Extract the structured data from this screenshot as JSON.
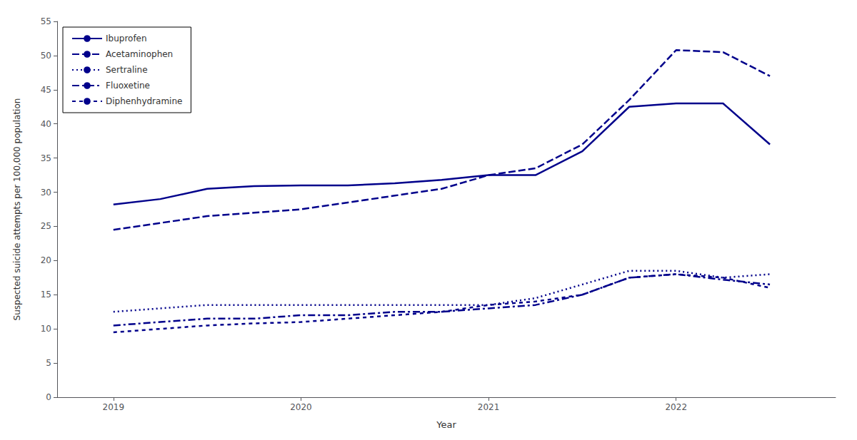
{
  "chart_data": {
    "type": "line",
    "xlabel": "Year",
    "ylabel": "Suspected suicide attempts per 100,000 population",
    "x": [
      2019.0,
      2019.25,
      2019.5,
      2019.75,
      2020.0,
      2020.25,
      2020.5,
      2020.75,
      2021.0,
      2021.25,
      2021.5,
      2021.75,
      2022.0,
      2022.25,
      2022.5
    ],
    "series": [
      {
        "name": "Ibuprofen",
        "line_style": "solid",
        "values": [
          28.2,
          29.0,
          30.5,
          30.9,
          31.0,
          31.0,
          31.3,
          31.8,
          32.5,
          32.5,
          36.0,
          42.5,
          43.0,
          43.0,
          37.0
        ]
      },
      {
        "name": "Acetaminophen",
        "line_style": "dashed",
        "values": [
          24.5,
          25.5,
          26.5,
          27.0,
          27.5,
          28.5,
          29.5,
          30.5,
          32.5,
          33.5,
          37.0,
          43.5,
          50.8,
          50.5,
          47.0
        ]
      },
      {
        "name": "Sertraline",
        "line_style": "dotted",
        "values": [
          12.5,
          13.0,
          13.5,
          13.5,
          13.5,
          13.5,
          13.5,
          13.5,
          13.5,
          14.5,
          16.5,
          18.5,
          18.5,
          17.5,
          18.0
        ]
      },
      {
        "name": "Fluoxetine",
        "line_style": "dashdot",
        "values": [
          10.5,
          11.0,
          11.5,
          11.5,
          12.0,
          12.0,
          12.5,
          12.5,
          13.0,
          13.5,
          15.0,
          17.5,
          18.0,
          17.2,
          16.5
        ]
      },
      {
        "name": "Diphenhydramine",
        "line_style": "loosely_dashed",
        "values": [
          9.5,
          10.0,
          10.5,
          10.8,
          11.0,
          11.5,
          12.0,
          12.5,
          13.5,
          14.0,
          15.0,
          17.5,
          18.0,
          17.5,
          16.0
        ]
      }
    ],
    "color": "#00008B",
    "xlim": [
      2018.7,
      2022.85
    ],
    "xticks": [
      2019,
      2020,
      2021,
      2022
    ],
    "ylim": [
      0,
      55
    ],
    "yticks": [
      0,
      5,
      10,
      15,
      20,
      25,
      30,
      35,
      40,
      45,
      50,
      55
    ],
    "grid": false,
    "legend": "upper left"
  }
}
